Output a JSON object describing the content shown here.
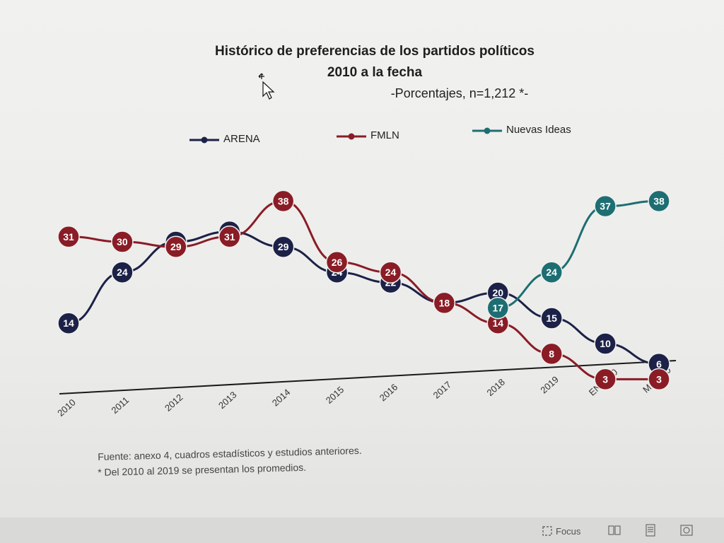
{
  "chart_data": {
    "type": "line",
    "title": "Histórico de preferencias de los partidos políticos",
    "title_line2": "2010 a la fecha",
    "subtitle": "-Porcentajes, n=1,212 *-",
    "xlabel": "",
    "ylabel": "",
    "categories": [
      "2010",
      "2011",
      "2012",
      "2013",
      "2014",
      "2015",
      "2016",
      "2017",
      "2018",
      "2019",
      "ENE.-20",
      "MAY.-20"
    ],
    "series": [
      {
        "name": "ARENA",
        "color": "#1c2147",
        "values": [
          14,
          24,
          30,
          32,
          29,
          24,
          22,
          18,
          20,
          15,
          10,
          6
        ]
      },
      {
        "name": "FMLN",
        "color": "#8a1c26",
        "values": [
          31,
          30,
          29,
          31,
          38,
          26,
          24,
          18,
          14,
          8,
          3,
          3
        ]
      },
      {
        "name": "Nuevas Ideas",
        "color": "#1d6e72",
        "values": [
          null,
          null,
          null,
          null,
          null,
          null,
          null,
          null,
          17,
          24,
          37,
          38
        ]
      }
    ],
    "legend_position": "top",
    "grid": false
  },
  "notes": {
    "source": "Fuente: anexo 4, cuadros estadísticos y estudios anteriores.",
    "footnote": "* Del 2010 al 2019 se presentan los promedios."
  },
  "statusbar": {
    "focus_label": "Focus"
  }
}
